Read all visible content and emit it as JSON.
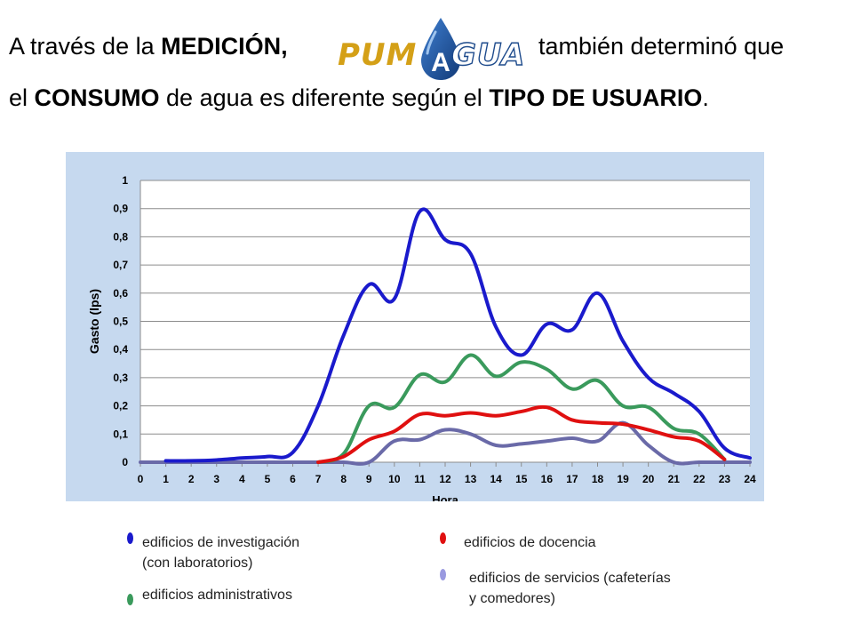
{
  "header": {
    "line1_before": "A través de la ",
    "line1_bold": "MEDICIÓN,",
    "line1_after": "también determinó que",
    "line2_a": "el ",
    "line2_b": "CONSUMO",
    "line2_c": " de agua es diferente según el ",
    "line2_d": "TIPO DE USUARIO",
    "line2_e": "."
  },
  "logo": {
    "text_left": "PUM",
    "text_right": "GUA",
    "drop_letter": "A"
  },
  "colors": {
    "chart_bg": "#c6d9ef",
    "investigacion": "#1a1acc",
    "docencia": "#e01010",
    "administrativos": "#3a9a5c",
    "servicios": "#6a6aa8",
    "servicios_marker": "#9a9ae0",
    "logo_gold": "#d4a017",
    "logo_blue": "#1e4b8c"
  },
  "chart_data": {
    "type": "line",
    "xlabel": "Hora",
    "ylabel": "Gasto (lps)",
    "xlim": [
      0,
      24
    ],
    "ylim": [
      0,
      1
    ],
    "x_ticks": [
      "0",
      "1",
      "2",
      "3",
      "4",
      "5",
      "6",
      "7",
      "8",
      "9",
      "10",
      "11",
      "12",
      "13",
      "14",
      "15",
      "16",
      "17",
      "18",
      "19",
      "20",
      "21",
      "22",
      "23",
      "24"
    ],
    "y_ticks": [
      "0",
      "0,1",
      "0,2",
      "0,3",
      "0,4",
      "0,5",
      "0,6",
      "0,7",
      "0,8",
      "0,9",
      "1"
    ],
    "grid": "horizontal",
    "series": [
      {
        "name": "edificios de investigación (con laboratorios)",
        "color_key": "investigacion",
        "x": [
          1,
          2,
          3,
          4,
          5,
          6,
          7,
          8,
          9,
          10,
          11,
          12,
          13,
          14,
          15,
          16,
          17,
          18,
          19,
          20,
          21,
          22,
          23,
          24
        ],
        "values": [
          0.005,
          0.005,
          0.008,
          0.015,
          0.02,
          0.035,
          0.2,
          0.45,
          0.63,
          0.58,
          0.89,
          0.79,
          0.74,
          0.48,
          0.38,
          0.49,
          0.47,
          0.6,
          0.43,
          0.3,
          0.245,
          0.18,
          0.05,
          0.015
        ]
      },
      {
        "name": "edificios de docencia",
        "color_key": "docencia",
        "x": [
          7,
          8,
          9,
          10,
          11,
          12,
          13,
          14,
          15,
          16,
          17,
          18,
          19,
          20,
          21,
          22,
          23
        ],
        "values": [
          0.0,
          0.02,
          0.08,
          0.11,
          0.17,
          0.165,
          0.175,
          0.165,
          0.18,
          0.195,
          0.15,
          0.14,
          0.135,
          0.115,
          0.09,
          0.075,
          0.01
        ]
      },
      {
        "name": "edificios administrativos",
        "color_key": "administrativos",
        "x": [
          7,
          8,
          9,
          10,
          11,
          12,
          13,
          14,
          15,
          16,
          17,
          18,
          19,
          20,
          21,
          22,
          23
        ],
        "values": [
          0.0,
          0.03,
          0.2,
          0.195,
          0.31,
          0.285,
          0.38,
          0.305,
          0.355,
          0.33,
          0.26,
          0.29,
          0.2,
          0.195,
          0.12,
          0.1,
          0.01
        ]
      },
      {
        "name": "edificios de servicios (cafeterías y comedores)",
        "color_key": "servicios",
        "x": [
          0,
          1,
          2,
          3,
          4,
          5,
          6,
          7,
          8,
          9,
          10,
          11,
          12,
          13,
          14,
          15,
          16,
          17,
          18,
          19,
          20,
          21,
          22,
          23,
          24
        ],
        "values": [
          0.0,
          0.0,
          0.0,
          0.0,
          0.0,
          0.0,
          0.0,
          0.0,
          0.0,
          0.0,
          0.075,
          0.08,
          0.115,
          0.1,
          0.06,
          0.065,
          0.075,
          0.085,
          0.075,
          0.14,
          0.06,
          0.0,
          0.0,
          0.0,
          0.0
        ]
      }
    ]
  },
  "legend": [
    {
      "line1": "edificios de investigación",
      "line2": "(con laboratorios)"
    },
    {
      "line1": "edificios de docencia",
      "line2": ""
    },
    {
      "line1": "edificios administrativos",
      "line2": ""
    },
    {
      "line1": "edificios de servicios (cafeterías",
      "line2": "y comedores)"
    }
  ]
}
